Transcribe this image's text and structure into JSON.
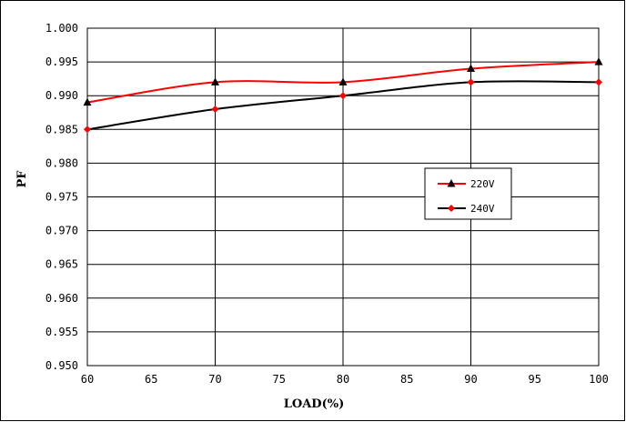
{
  "chart_data": {
    "type": "line",
    "title": "",
    "xlabel": "LOAD(%)",
    "ylabel": "PF",
    "xlim": [
      60,
      100
    ],
    "ylim": [
      0.95,
      1.0
    ],
    "xticks": [
      60,
      65,
      70,
      75,
      80,
      85,
      90,
      95,
      100
    ],
    "yticks": [
      0.95,
      0.955,
      0.96,
      0.965,
      0.97,
      0.975,
      0.98,
      0.985,
      0.99,
      0.995,
      1.0
    ],
    "x_tick_labels": [
      "60",
      "65",
      "70",
      "75",
      "80",
      "85",
      "90",
      "95",
      "100"
    ],
    "y_tick_labels": [
      "0.950",
      "0.955",
      "0.960",
      "0.965",
      "0.970",
      "0.975",
      "0.980",
      "0.985",
      "0.990",
      "0.995",
      "1.000"
    ],
    "grid": true,
    "legend_position": "center-right",
    "series": [
      {
        "name": "220V",
        "x": [
          60,
          70,
          80,
          90,
          100
        ],
        "values": [
          0.989,
          0.992,
          0.992,
          0.994,
          0.995
        ],
        "line_color": "#ff0000",
        "marker": "triangle",
        "marker_color": "#000000"
      },
      {
        "name": "240V",
        "x": [
          60,
          70,
          80,
          90,
          100
        ],
        "values": [
          0.985,
          0.988,
          0.99,
          0.992,
          0.992
        ],
        "line_color": "#000000",
        "marker": "diamond",
        "marker_color": "#ff0000"
      }
    ]
  }
}
